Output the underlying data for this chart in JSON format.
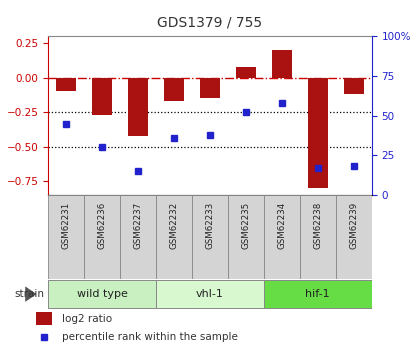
{
  "title": "GDS1379 / 755",
  "samples": [
    "GSM62231",
    "GSM62236",
    "GSM62237",
    "GSM62232",
    "GSM62233",
    "GSM62235",
    "GSM62234",
    "GSM62238",
    "GSM62239"
  ],
  "log2_ratio": [
    -0.1,
    -0.27,
    -0.42,
    -0.17,
    -0.15,
    0.08,
    0.2,
    -0.8,
    -0.12
  ],
  "percentile_rank": [
    45,
    30,
    15,
    36,
    38,
    52,
    58,
    17,
    18
  ],
  "groups": [
    {
      "label": "wild type",
      "start": 0,
      "end": 3,
      "color": "#c8f0c0"
    },
    {
      "label": "vhl-1",
      "start": 3,
      "end": 6,
      "color": "#d8f8d0"
    },
    {
      "label": "hif-1",
      "start": 6,
      "end": 9,
      "color": "#66dd44"
    }
  ],
  "ylim_left": [
    -0.85,
    0.3
  ],
  "ylim_right": [
    0,
    100
  ],
  "yticks_left": [
    -0.75,
    -0.5,
    -0.25,
    0,
    0.25
  ],
  "yticks_right": [
    0,
    25,
    50,
    75,
    100
  ],
  "bar_color": "#aa1111",
  "dot_color": "#2222cc",
  "hline_color": "#cc0000",
  "dotted_line_color": "#000000",
  "background_color": "#ffffff"
}
